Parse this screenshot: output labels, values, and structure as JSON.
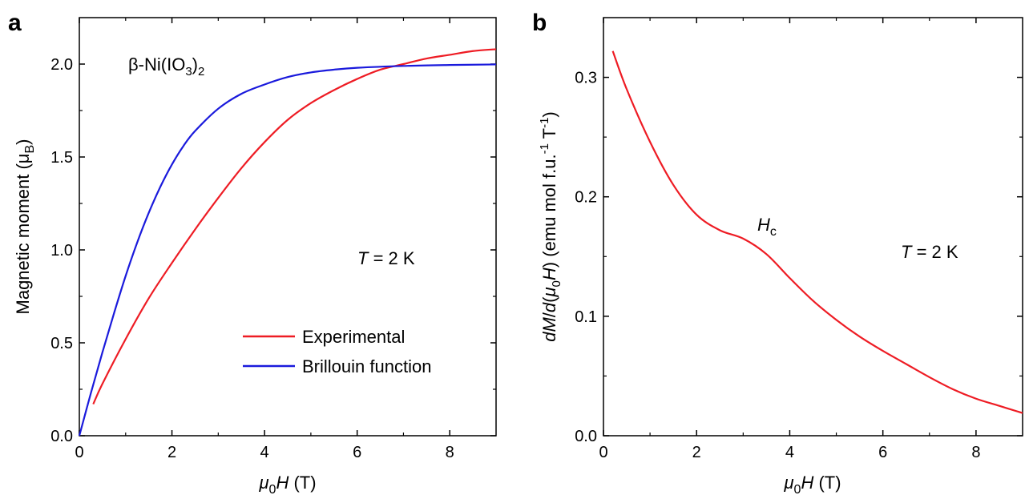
{
  "chart_data": [
    {
      "type": "line",
      "panel_label": "a",
      "annotation_formula": {
        "base": "β-Ni(IO",
        "sub1": "3",
        "mid": ")",
        "sub2": "2"
      },
      "annotation_temp": {
        "italic": "T",
        "rest": " = 2 K"
      },
      "xlabel": {
        "prefix": "μ",
        "sub": "0",
        "italic": "H",
        "unit": " (T)"
      },
      "ylabel": {
        "text": "Magnetic moment (μ",
        "sub": "B",
        "close": ")"
      },
      "xlim": [
        0,
        9
      ],
      "ylim": [
        0,
        2.25
      ],
      "xticks": [
        0,
        2,
        4,
        6,
        8
      ],
      "xtick_labels": [
        "0",
        "2",
        "4",
        "6",
        "8"
      ],
      "yticks": [
        0,
        0.5,
        1.0,
        1.5,
        2.0
      ],
      "ytick_labels": [
        "0.0",
        "0.5",
        "1.0",
        "1.5",
        "2.0"
      ],
      "legend_position": "lower-right",
      "series": [
        {
          "name": "Experimental",
          "color": "#ee1c24",
          "x": [
            0.3,
            0.5,
            1.0,
            1.5,
            2.0,
            2.5,
            3.0,
            3.5,
            4.0,
            4.5,
            5.0,
            5.5,
            6.0,
            6.5,
            7.0,
            7.5,
            8.0,
            8.5,
            9.0
          ],
          "y": [
            0.17,
            0.28,
            0.52,
            0.74,
            0.93,
            1.11,
            1.28,
            1.44,
            1.58,
            1.7,
            1.79,
            1.86,
            1.92,
            1.97,
            2.0,
            2.03,
            2.05,
            2.07,
            2.08
          ]
        },
        {
          "name": "Brillouin function",
          "color": "#1a1adc",
          "x": [
            0.0,
            0.25,
            0.5,
            0.75,
            1.0,
            1.25,
            1.5,
            1.75,
            2.0,
            2.25,
            2.5,
            3.0,
            3.5,
            4.0,
            4.5,
            5.0,
            5.5,
            6.0,
            7.0,
            8.0,
            9.0
          ],
          "y": [
            0.0,
            0.23,
            0.45,
            0.66,
            0.86,
            1.04,
            1.2,
            1.34,
            1.46,
            1.56,
            1.64,
            1.76,
            1.84,
            1.89,
            1.93,
            1.955,
            1.97,
            1.98,
            1.99,
            1.995,
            1.998
          ]
        }
      ]
    },
    {
      "type": "line",
      "panel_label": "b",
      "annotation_hc": {
        "italic": "H",
        "sub": "c"
      },
      "annotation_temp": {
        "italic": "T",
        "rest": " = 2 K"
      },
      "xlabel": {
        "prefix": "μ",
        "sub": "0",
        "italic": "H",
        "unit": " (T)"
      },
      "ylabel": {
        "i1": "dM",
        "slash": "/",
        "i2": "d",
        "p1": "(",
        "mu": "μ",
        "sub0": "0",
        "i3": "H",
        "p2": ")",
        "rest": " (emu mol f.u.",
        "sup1": "-1",
        "t": " T",
        "sup2": "-1",
        "close": ")"
      },
      "xlim": [
        0,
        9
      ],
      "ylim": [
        0,
        0.35
      ],
      "xticks": [
        0,
        2,
        4,
        6,
        8
      ],
      "xtick_labels": [
        "0",
        "2",
        "4",
        "6",
        "8"
      ],
      "yticks": [
        0,
        0.1,
        0.2,
        0.3
      ],
      "ytick_labels": [
        "0.0",
        "0.1",
        "0.2",
        "0.3"
      ],
      "series": [
        {
          "color": "#ee1c24",
          "x": [
            0.2,
            0.5,
            1.0,
            1.5,
            2.0,
            2.5,
            3.0,
            3.5,
            4.0,
            4.5,
            5.0,
            5.5,
            6.0,
            6.5,
            7.0,
            7.5,
            8.0,
            8.5,
            9.0
          ],
          "y": [
            0.322,
            0.29,
            0.246,
            0.21,
            0.185,
            0.172,
            0.165,
            0.152,
            0.132,
            0.113,
            0.097,
            0.083,
            0.071,
            0.06,
            0.049,
            0.039,
            0.031,
            0.025,
            0.019
          ]
        }
      ]
    }
  ]
}
